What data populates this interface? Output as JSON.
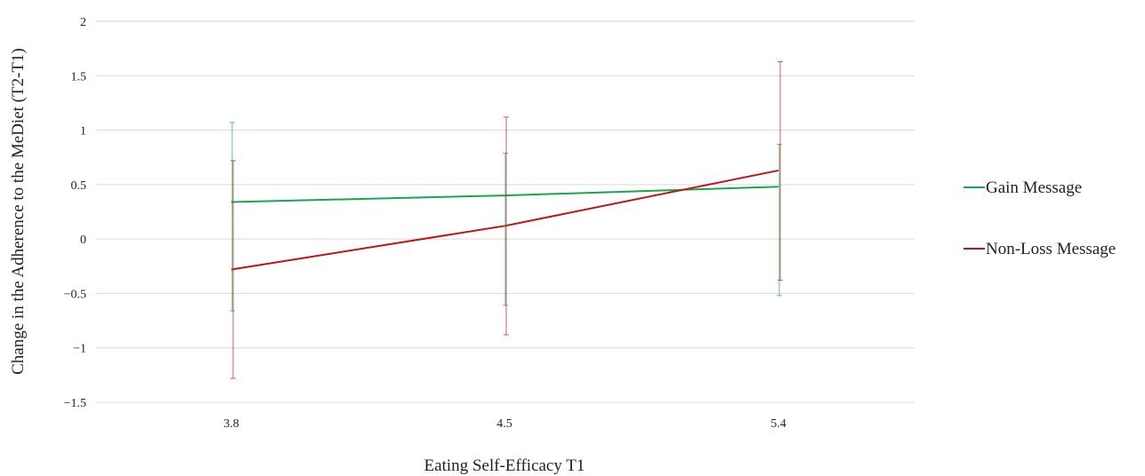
{
  "chart_data": {
    "type": "line",
    "title": "",
    "xlabel": "Eating Self-Efficacy T1",
    "ylabel": "Change in the Adherence to the MeDiet (T2-T1)",
    "categories": [
      "3.8",
      "4.5",
      "5.4"
    ],
    "ylim": [
      -1.5,
      2
    ],
    "yticks": [
      -1.5,
      -1,
      -0.5,
      0,
      0.5,
      1,
      1.5,
      2
    ],
    "ytick_labels": [
      "−1.5",
      "−1",
      "−0.5",
      "0",
      "0.5",
      "1",
      "1.5",
      "2"
    ],
    "grid": true,
    "legend_position": "right",
    "series": [
      {
        "name": "Gain Message",
        "color": "#1aa64f",
        "values": [
          0.34,
          0.4,
          0.48
        ],
        "error_low": [
          -0.66,
          -0.61,
          -0.52
        ],
        "error_high": [
          1.07,
          0.79,
          0.87
        ]
      },
      {
        "name": "Non-Loss Message",
        "color": "#c0141b",
        "values": [
          -0.28,
          0.12,
          0.63
        ],
        "error_low": [
          -1.28,
          -0.88,
          -0.38
        ],
        "error_high": [
          0.72,
          1.12,
          1.63
        ]
      }
    ]
  }
}
